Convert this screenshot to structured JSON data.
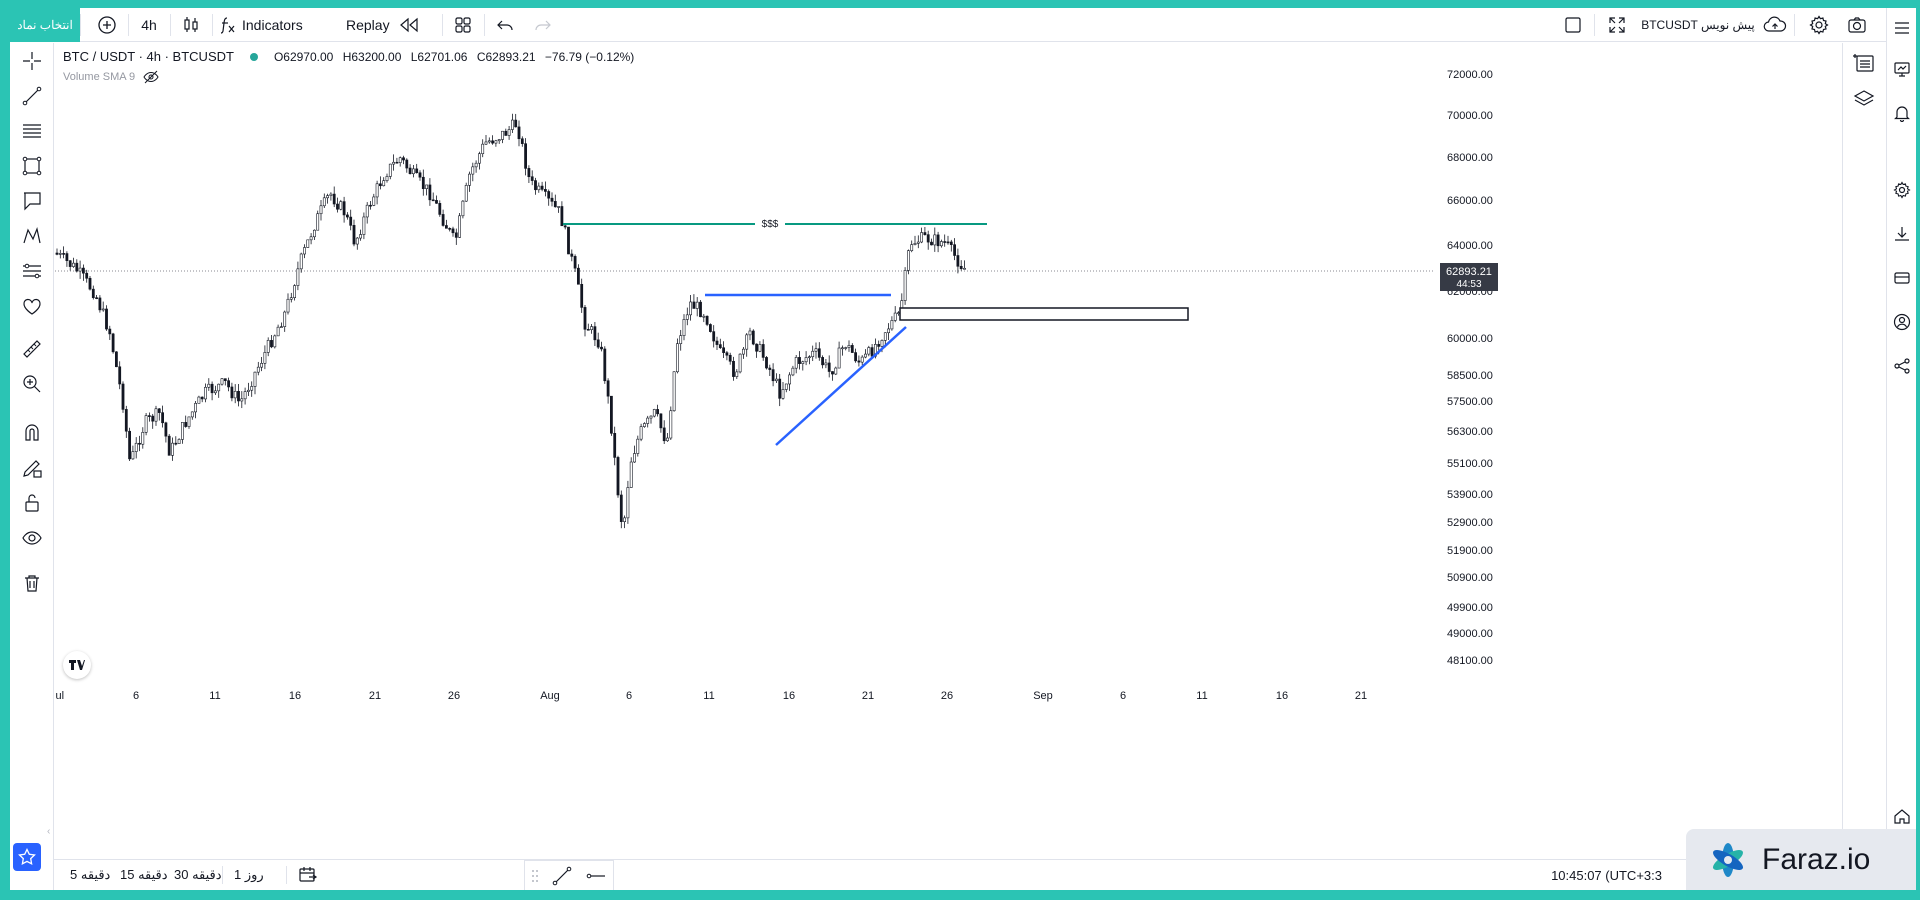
{
  "topbar": {
    "symbol_search_label": "انتخاب نماد",
    "interval": "4h",
    "indicators_label": "Indicators",
    "replay_label": "Replay",
    "preview_label": "BTCUSDT پیش نویس"
  },
  "legend": {
    "symbol": "BTC / USDT · 4h · BTCUSDT",
    "open": "O62970.00",
    "high": "H63200.00",
    "low": "L62701.06",
    "close": "C62893.21",
    "change": "−76.79 (−0.12%)",
    "volume_label": "Volume SMA 9"
  },
  "annotations": {
    "liquidity_label": "$$$"
  },
  "price_axis": {
    "ticks": [
      "72000.00",
      "70000.00",
      "68000.00",
      "66000.00",
      "64000.00",
      "62000.00",
      "60000.00",
      "58500.00",
      "57500.00",
      "56300.00",
      "55100.00",
      "53900.00",
      "52900.00",
      "51900.00",
      "50900.00",
      "49900.00",
      "49000.00",
      "48100.00"
    ],
    "current_price": "62893.21",
    "countdown": "44:53"
  },
  "time_axis": {
    "ticks": [
      "Jul",
      "6",
      "11",
      "16",
      "21",
      "26",
      "Aug",
      "6",
      "11",
      "16",
      "21",
      "26",
      "Sep",
      "6",
      "11",
      "16",
      "21"
    ]
  },
  "bottombar": {
    "tf_5m": "5 دقیقه",
    "tf_15m": "15 دقیقه",
    "tf_30m": "30 دقیقه",
    "tf_1d": "1 روز",
    "clock": "10:45:07 (UTC+3:3"
  },
  "badge": {
    "text": "Faraz.io"
  },
  "colors": {
    "accent": "#2bc4b4",
    "trendline": "#2962ff",
    "liquidity_line": "#089981",
    "current_price_bg": "#363a45"
  }
}
